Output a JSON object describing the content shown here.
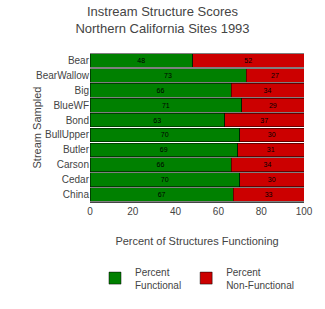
{
  "chart_data": {
    "type": "bar",
    "orientation": "horizontal",
    "stacked": true,
    "title": "Instream Structure Scores\nNorthern California Sites 1993",
    "xlabel": "Percent of Structures Functioning",
    "ylabel": "Stream Sampled",
    "categories": [
      "Bear",
      "BearWallow",
      "Big",
      "BlueWF",
      "Bond",
      "BullUpper",
      "Butler",
      "Carson",
      "Cedar",
      "China"
    ],
    "series": [
      {
        "name": "Percent\nFunctional",
        "color": "#008000",
        "values": [
          48,
          73,
          66,
          71,
          63,
          70,
          69,
          66,
          70,
          67
        ]
      },
      {
        "name": "Percent\nNon-Functional",
        "color": "#cc0000",
        "values": [
          52,
          27,
          34,
          29,
          37,
          30,
          31,
          34,
          30,
          33
        ]
      }
    ],
    "xlim": [
      0,
      100
    ],
    "xticks": [
      0,
      20,
      40,
      60,
      80,
      100
    ],
    "grid": false,
    "legend": "bottom",
    "data_labels": true
  }
}
